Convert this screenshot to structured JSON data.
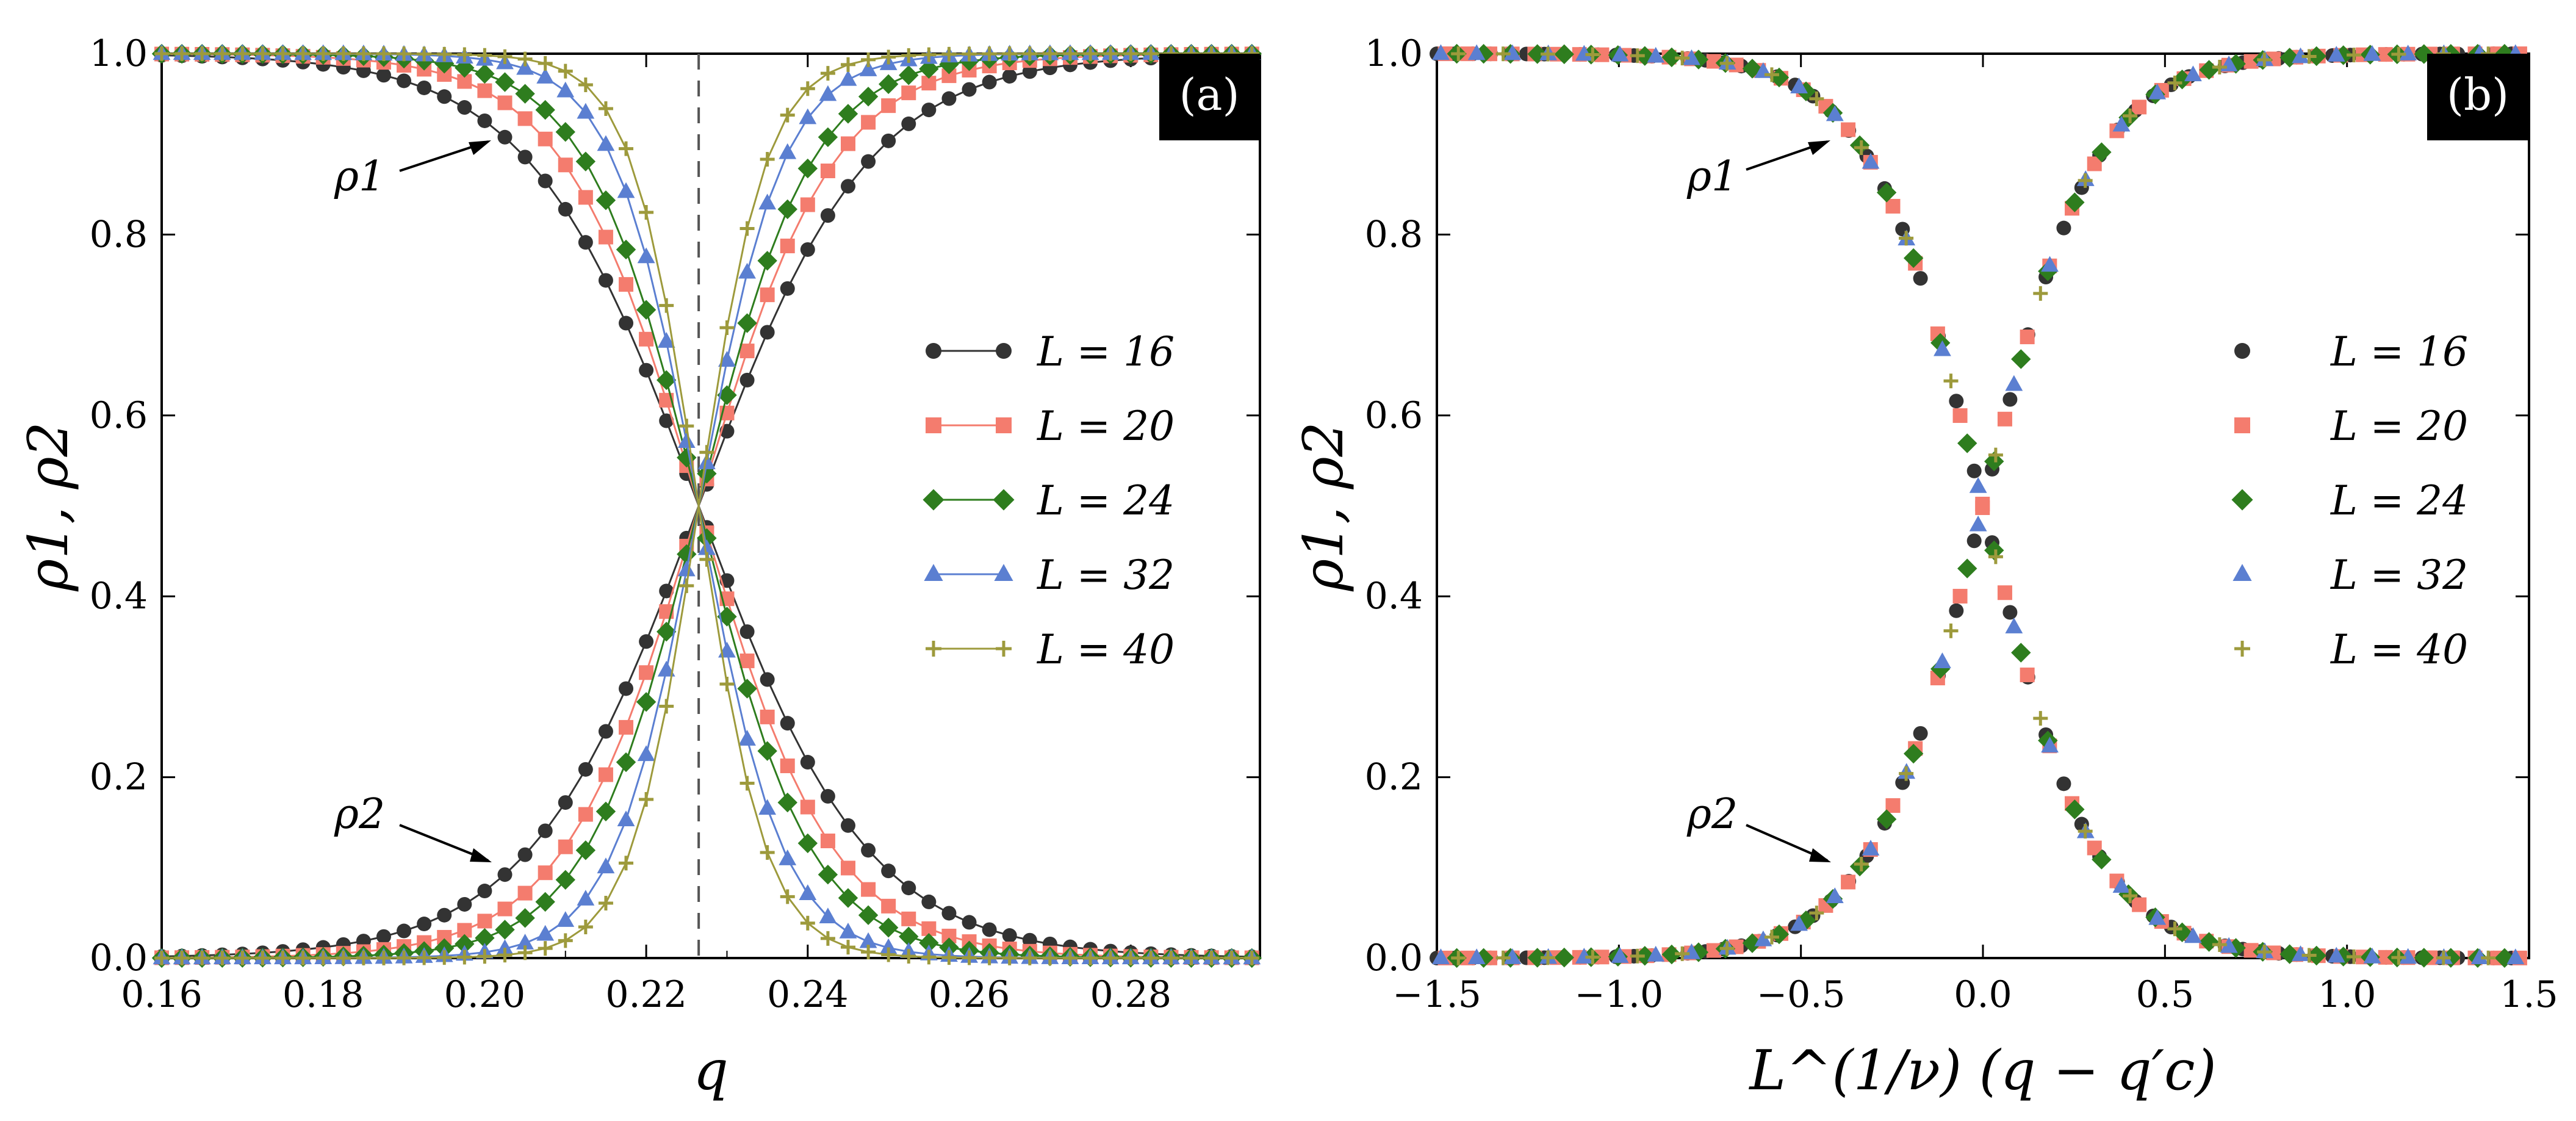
{
  "figure": {
    "panels": [
      "(a)",
      "(b)"
    ]
  },
  "chart_data": [
    {
      "type": "line",
      "panel_label": "(a)",
      "xlabel": "q",
      "ylabel": "ρ1, ρ2",
      "xlim": [
        0.16,
        0.296
      ],
      "ylim": [
        0.0,
        1.0
      ],
      "xticks": [
        "0.16",
        "0.18",
        "0.20",
        "0.22",
        "0.24",
        "0.26",
        "0.28"
      ],
      "yticks": [
        "0.0",
        "0.2",
        "0.4",
        "0.6",
        "0.8",
        "1.0"
      ],
      "critical_q": 0.2265,
      "critical_line": "dashed vertical line at q = 0.2265",
      "legend_position": "center-right",
      "annotations": [
        {
          "text": "ρ1",
          "points_to": [
            0.2,
            0.9
          ]
        },
        {
          "text": "ρ2",
          "points_to": [
            0.2,
            0.1
          ]
        }
      ],
      "description": "rho1 decreases and rho2 increases through 0.5 at q_c ≈ 0.2265; curves sharpen with larger L. Each series approximated by logistic curves.",
      "series": [
        {
          "name": "L = 16",
          "L": 16,
          "color": "#333333",
          "marker": "circle",
          "line": true
        },
        {
          "name": "L = 20",
          "L": 20,
          "color": "#f47c6e",
          "marker": "square",
          "line": true
        },
        {
          "name": "L = 24",
          "L": 24,
          "color": "#2e7d1e",
          "marker": "diamond",
          "line": true
        },
        {
          "name": "L = 32",
          "L": 32,
          "color": "#5b7fd1",
          "marker": "triangle",
          "line": true
        },
        {
          "name": "L = 40",
          "L": 40,
          "color": "#9d9a3c",
          "marker": "plus",
          "line": true
        }
      ],
      "sampling": {
        "x_start": 0.16,
        "x_end": 0.296,
        "step": 0.0025
      }
    },
    {
      "type": "scatter",
      "panel_label": "(b)",
      "xlabel": "L^(1/ν) (q − q′c)",
      "ylabel": "ρ1, ρ2",
      "xlim": [
        -1.5,
        1.5
      ],
      "ylim": [
        0.0,
        1.0
      ],
      "xticks": [
        "−1.5",
        "−1.0",
        "−0.5",
        "0.0",
        "0.5",
        "1.0",
        "1.5"
      ],
      "yticks": [
        "0.0",
        "0.2",
        "0.4",
        "0.6",
        "0.8",
        "1.0"
      ],
      "legend_position": "center-right",
      "annotations": [
        {
          "text": "ρ1",
          "points_to": [
            -0.35,
            0.9
          ]
        },
        {
          "text": "ρ2",
          "points_to": [
            -0.35,
            0.11
          ]
        }
      ],
      "description": "data collapse: all system sizes fall on one master curve rho = 1/(1+exp(±x/w)), w ≈ 0.155",
      "collapse_width": 0.155,
      "series": [
        {
          "name": "L = 16",
          "L": 16,
          "color": "#333333",
          "marker": "circle"
        },
        {
          "name": "L = 20",
          "L": 20,
          "color": "#f47c6e",
          "marker": "square"
        },
        {
          "name": "L = 24",
          "L": 24,
          "color": "#2e7d1e",
          "marker": "diamond"
        },
        {
          "name": "L = 32",
          "L": 32,
          "color": "#5b7fd1",
          "marker": "triangle"
        },
        {
          "name": "L = 40",
          "L": 40,
          "color": "#9d9a3c",
          "marker": "plus"
        }
      ]
    }
  ]
}
